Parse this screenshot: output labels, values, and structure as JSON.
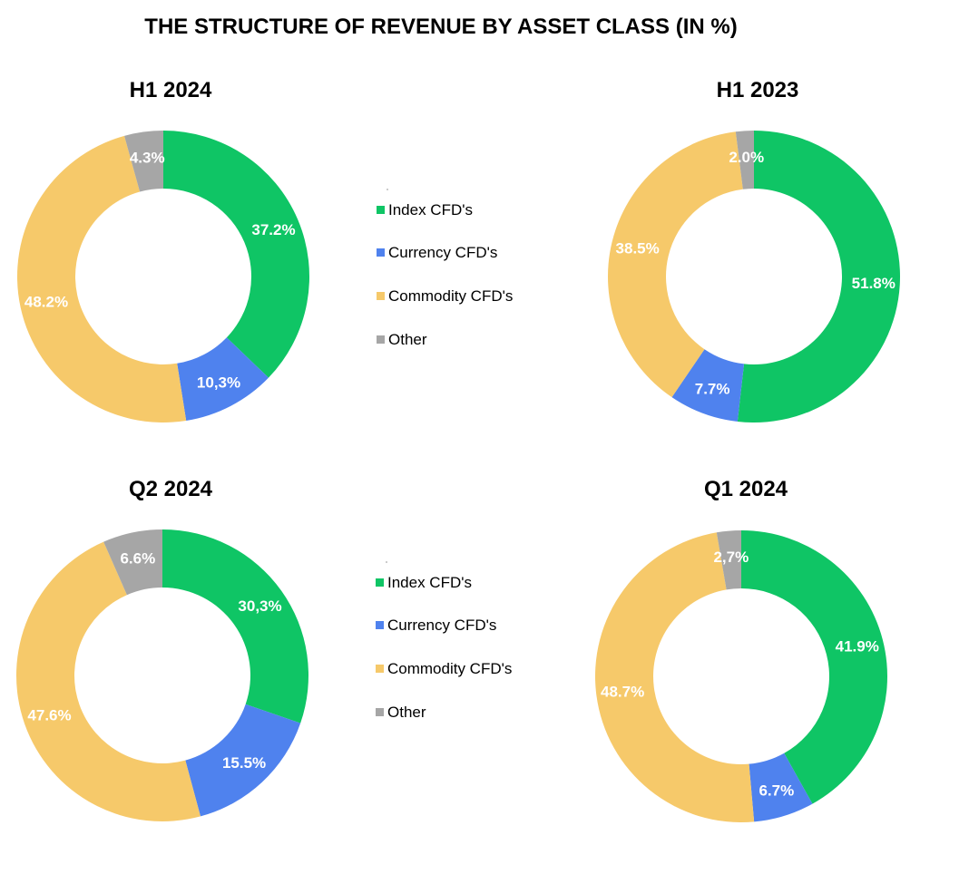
{
  "title": "THE STRUCTURE OF REVENUE BY ASSET CLASS (IN %)",
  "colors": {
    "index": "#0fc565",
    "currency": "#4f82ee",
    "commodity": "#f6c96a",
    "other": "#a6a6a6"
  },
  "legend": {
    "items": [
      "Index CFD's",
      "Currency CFD's",
      "Commodity CFD's",
      "Other"
    ]
  },
  "chart_data": [
    {
      "type": "pie",
      "title": "H1 2024",
      "categories": [
        "Index CFD's",
        "Currency CFD's",
        "Commodity CFD's",
        "Other"
      ],
      "values": [
        37.2,
        10.3,
        48.2,
        4.3
      ],
      "labels": [
        "37.2%",
        "10,3%",
        "48.2%",
        "4.3%"
      ]
    },
    {
      "type": "pie",
      "title": "H1 2023",
      "categories": [
        "Index CFD's",
        "Currency CFD's",
        "Commodity CFD's",
        "Other"
      ],
      "values": [
        51.8,
        7.7,
        38.5,
        2.0
      ],
      "labels": [
        "51.8%",
        "7.7%",
        "38.5%",
        "2.0%"
      ]
    },
    {
      "type": "pie",
      "title": "Q2 2024",
      "categories": [
        "Index CFD's",
        "Currency CFD's",
        "Commodity CFD's",
        "Other"
      ],
      "values": [
        30.3,
        15.5,
        47.6,
        6.6
      ],
      "labels": [
        "30,3%",
        "15.5%",
        "47.6%",
        "6.6%"
      ]
    },
    {
      "type": "pie",
      "title": "Q1 2024",
      "categories": [
        "Index CFD's",
        "Currency CFD's",
        "Commodity CFD's",
        "Other"
      ],
      "values": [
        41.9,
        6.7,
        48.7,
        2.7
      ],
      "labels": [
        "41.9%",
        "6.7%",
        "48.7%",
        "2,7%"
      ]
    }
  ]
}
